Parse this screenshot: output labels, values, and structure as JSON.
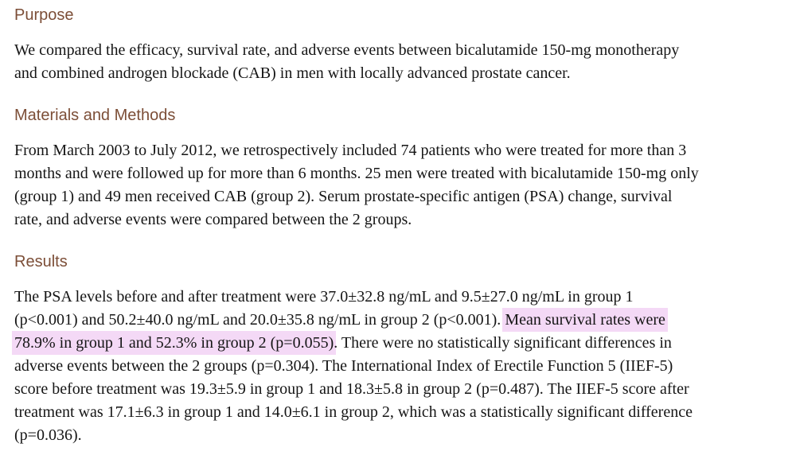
{
  "colors": {
    "background": "#ffffff",
    "heading": "#7c4e37",
    "text": "#151515",
    "highlight": "#f4d9f6"
  },
  "sections": [
    {
      "id": "purpose",
      "heading": "Purpose",
      "lines": [
        [
          {
            "text": "We compared the efficacy, survival rate, and adverse events between bicalutamide 150-mg monotherapy",
            "highlight": false
          }
        ],
        [
          {
            "text": "and combined androgen blockade (CAB) in men with locally advanced prostate cancer.",
            "highlight": false
          }
        ]
      ]
    },
    {
      "id": "materials-and-methods",
      "heading": "Materials and Methods",
      "lines": [
        [
          {
            "text": "From March 2003 to July 2012, we retrospectively included 74 patients who were treated for more than 3",
            "highlight": false
          }
        ],
        [
          {
            "text": "months and were followed up for more than 6 months. 25 men were treated with bicalutamide 150-mg only",
            "highlight": false
          }
        ],
        [
          {
            "text": "(group 1) and 49 men received CAB (group 2). Serum prostate-specific antigen (PSA) change, survival",
            "highlight": false
          }
        ],
        [
          {
            "text": "rate, and adverse events were compared between the 2 groups.",
            "highlight": false
          }
        ]
      ]
    },
    {
      "id": "results",
      "heading": "Results",
      "lines": [
        [
          {
            "text": "The PSA levels before and after treatment were 37.0±32.8 ng/mL and 9.5±27.0 ng/mL in group 1",
            "highlight": false
          }
        ],
        [
          {
            "text": "(p<0.001) and 50.2±40.0 ng/mL and 20.0±35.8 ng/mL in group 2 (p<0.001). ",
            "highlight": false
          },
          {
            "text": "Mean survival rates were",
            "highlight": true
          }
        ],
        [
          {
            "text": "78.9% in group 1 and 52.3% in group 2 (p=0.055)",
            "highlight": true
          },
          {
            "text": ". There were no statistically significant differences in",
            "highlight": false
          }
        ],
        [
          {
            "text": "adverse events between the 2 groups (p=0.304). The International Index of Erectile Function 5 (IIEF-5)",
            "highlight": false
          }
        ],
        [
          {
            "text": "score before treatment was 19.3±5.9 in group 1 and 18.3±5.8 in group 2 (p=0.487). The IIEF-5 score after",
            "highlight": false
          }
        ],
        [
          {
            "text": "treatment was 17.1±6.3 in group 1 and 14.0±6.1 in group 2, which was a statistically significant difference",
            "highlight": false
          }
        ],
        [
          {
            "text": "(p=0.036).",
            "highlight": false
          }
        ]
      ]
    }
  ]
}
